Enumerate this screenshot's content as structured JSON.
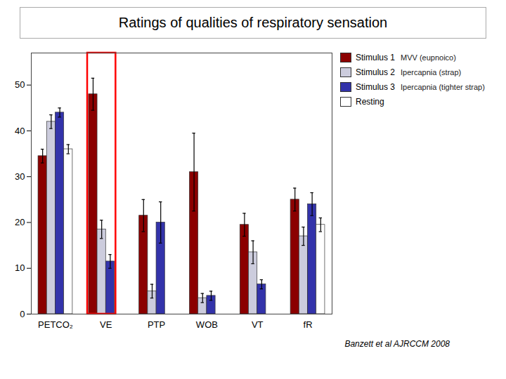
{
  "chart_data": {
    "type": "bar",
    "title": "Ratings of qualities of respiratory sensation",
    "categories": [
      "PETCO₂",
      "VE",
      "PTP",
      "WOB",
      "VT",
      "fR"
    ],
    "series": [
      {
        "name": "Stimulus 1",
        "color": "#8B0000",
        "values": [
          34.5,
          48.0,
          21.5,
          31.0,
          19.5,
          25.0
        ],
        "errors": [
          1.5,
          3.5,
          3.5,
          8.5,
          2.5,
          2.5
        ]
      },
      {
        "name": "Stimulus 2",
        "color": "#ccccdd",
        "values": [
          42.0,
          18.5,
          5.0,
          3.5,
          13.5,
          17.0
        ],
        "errors": [
          1.5,
          2.0,
          1.5,
          1.0,
          2.5,
          2.0
        ]
      },
      {
        "name": "Stimulus 3",
        "color": "#3333aa",
        "values": [
          44.0,
          11.5,
          20.0,
          4.0,
          6.5,
          24.0
        ],
        "errors": [
          1.0,
          1.5,
          4.5,
          1.0,
          1.0,
          2.5
        ]
      },
      {
        "name": "Resting",
        "color": "#FFFFFF",
        "values": [
          36.0,
          null,
          null,
          null,
          null,
          19.5
        ],
        "errors": [
          1.0,
          null,
          null,
          null,
          null,
          1.5
        ]
      }
    ],
    "annotations": [
      "MVV (eupnoico)",
      "Ipercapnia (strap)",
      "Ipercapnia (tighter strap)"
    ],
    "highlight": {
      "category": "VE",
      "color": "red"
    },
    "caption": "Banzett et al AJRCCM 2008",
    "ylim": [
      0,
      57
    ],
    "yticks": [
      0,
      10,
      20,
      30,
      40,
      50
    ],
    "grid": false,
    "legend": "upper right"
  }
}
